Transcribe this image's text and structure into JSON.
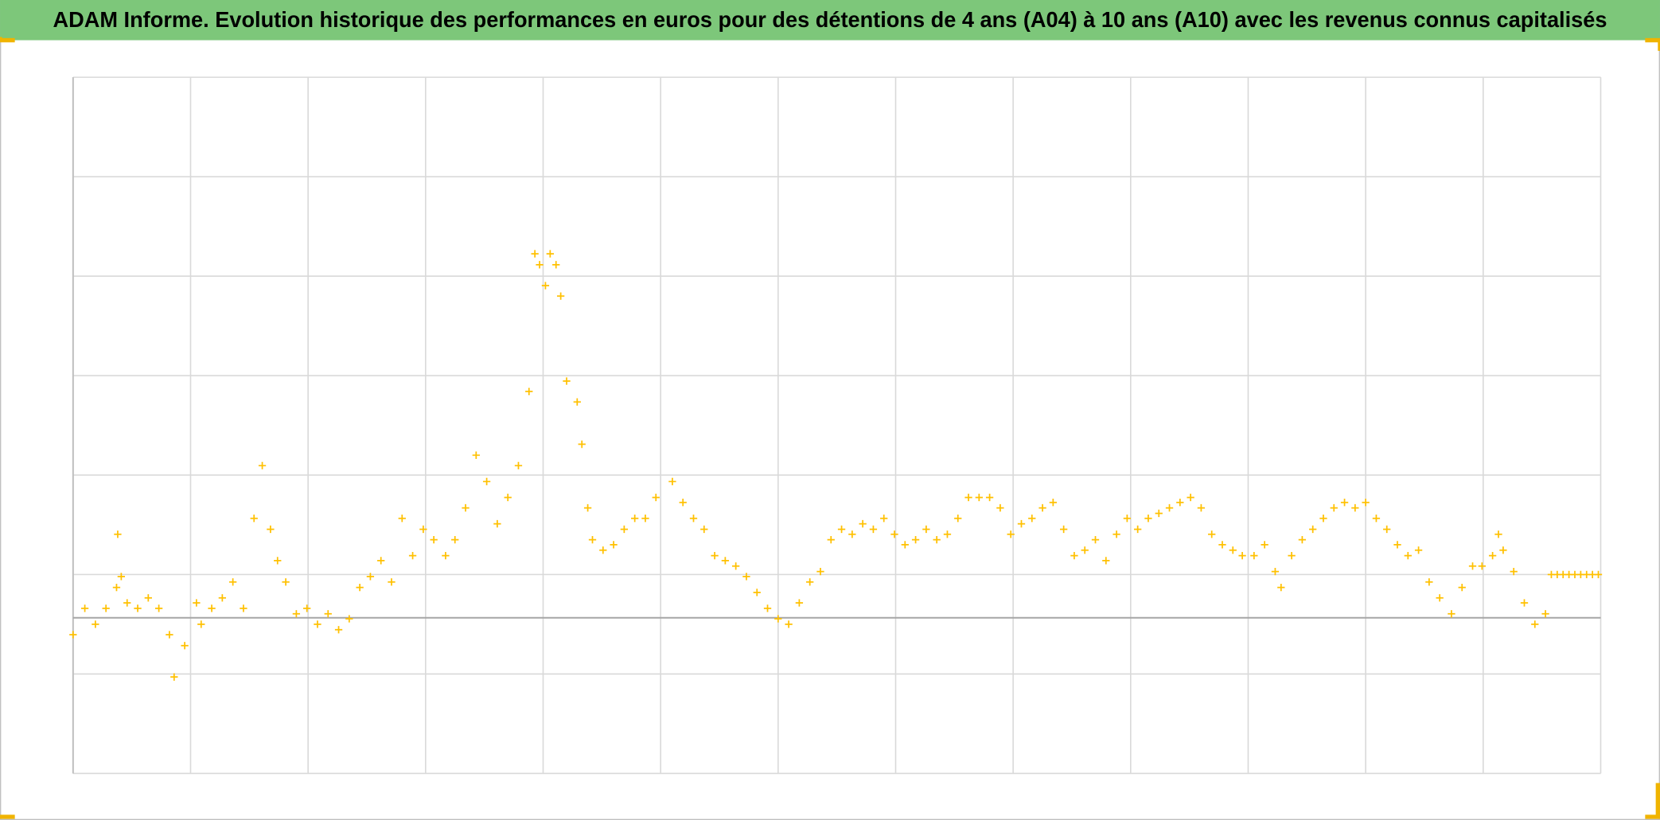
{
  "chart_data": {
    "type": "scatter",
    "title": "ADAM Informe. Evolution historique des performances en euros pour des détentions de 4 ans (A04) à 10 ans (A10) avec les revenus connus capitalisés",
    "color": "#FFC000",
    "marker": "plus",
    "grid": true,
    "xlim": [
      0,
      13
    ],
    "xticks": [
      0,
      1,
      2,
      3,
      4,
      5,
      6,
      7,
      8,
      9,
      10,
      11,
      12,
      13
    ],
    "ylim": [
      -40,
      100
    ],
    "yticks": [
      -40,
      -20,
      0,
      20,
      40,
      60,
      80,
      100
    ],
    "x_axis_at": -8.7,
    "x": [
      0,
      0.1,
      0.19,
      0.28,
      0.37,
      0.38,
      0.41,
      0.46,
      0.55,
      0.64,
      0.73,
      0.82,
      0.86,
      0.95,
      1.05,
      1.09,
      1.18,
      1.27,
      1.36,
      1.45,
      1.54,
      1.61,
      1.68,
      1.74,
      1.81,
      1.9,
      1.99,
      2.08,
      2.17,
      2.26,
      2.35,
      2.44,
      2.53,
      2.62,
      2.71,
      2.8,
      2.89,
      2.98,
      3.07,
      3.17,
      3.25,
      3.34,
      3.43,
      3.52,
      3.61,
      3.7,
      3.79,
      3.88,
      3.93,
      3.97,
      4.02,
      4.06,
      4.11,
      4.15,
      4.2,
      4.29,
      4.33,
      4.38,
      4.42,
      4.51,
      4.6,
      4.69,
      4.78,
      4.87,
      4.96,
      5.1,
      5.19,
      5.28,
      5.37,
      5.46,
      5.55,
      5.64,
      5.73,
      5.82,
      5.91,
      6.0,
      6.09,
      6.18,
      6.27,
      6.36,
      6.45,
      6.54,
      6.63,
      6.72,
      6.81,
      6.9,
      6.99,
      7.08,
      7.17,
      7.26,
      7.35,
      7.44,
      7.53,
      7.62,
      7.71,
      7.8,
      7.89,
      7.98,
      8.07,
      8.16,
      8.25,
      8.34,
      8.43,
      8.52,
      8.61,
      8.7,
      8.79,
      8.88,
      8.97,
      9.06,
      9.15,
      9.24,
      9.33,
      9.42,
      9.51,
      9.6,
      9.69,
      9.78,
      9.87,
      9.95,
      10.05,
      10.14,
      10.23,
      10.28,
      10.37,
      10.46,
      10.55,
      10.64,
      10.73,
      10.82,
      10.91,
      11.0,
      11.09,
      11.18,
      11.27,
      11.36,
      11.45,
      11.54,
      11.63,
      11.73,
      11.82,
      11.91,
      11.99,
      12.08,
      12.13,
      12.17,
      12.26,
      12.35,
      12.44,
      12.53,
      12.58,
      12.63,
      12.68,
      12.73,
      12.78,
      12.83,
      12.88,
      12.93,
      12.98
    ],
    "values": [
      -12.1,
      -6.8,
      -10.0,
      -6.8,
      -2.6,
      8.1,
      -0.4,
      -5.7,
      -6.8,
      -4.7,
      -6.8,
      -12.1,
      -20.6,
      -14.3,
      -5.7,
      -10.0,
      -6.8,
      -4.7,
      -1.5,
      -6.8,
      11.3,
      21.9,
      9.1,
      2.8,
      -1.5,
      -7.9,
      -6.8,
      -10.0,
      -7.9,
      -11.1,
      -8.9,
      -2.6,
      -0.4,
      2.8,
      -1.5,
      11.3,
      3.8,
      9.1,
      7.0,
      3.8,
      7.0,
      13.4,
      24.0,
      18.7,
      10.2,
      15.5,
      21.9,
      36.8,
      64.5,
      62.3,
      58.1,
      64.5,
      62.3,
      56.0,
      38.9,
      34.7,
      26.2,
      13.4,
      7.0,
      4.9,
      6.0,
      9.1,
      11.3,
      11.3,
      15.5,
      18.7,
      14.5,
      11.3,
      9.1,
      3.8,
      2.8,
      1.7,
      -0.4,
      -3.6,
      -6.8,
      -8.9,
      -10.0,
      -5.7,
      -1.5,
      0.6,
      7.0,
      9.1,
      8.1,
      10.2,
      9.1,
      11.3,
      8.1,
      6.0,
      7.0,
      9.1,
      7.0,
      8.1,
      11.3,
      15.5,
      15.5,
      15.5,
      13.4,
      8.1,
      10.2,
      11.3,
      13.4,
      14.5,
      9.1,
      3.8,
      4.9,
      7.0,
      2.8,
      8.1,
      11.3,
      9.1,
      11.3,
      12.3,
      13.4,
      14.5,
      15.5,
      13.4,
      8.1,
      6.0,
      4.9,
      3.8,
      3.8,
      6.0,
      0.6,
      -2.6,
      3.8,
      7.0,
      9.1,
      11.3,
      13.4,
      14.5,
      13.4,
      14.5,
      11.3,
      9.1,
      6.0,
      3.8,
      4.9,
      -1.5,
      -4.7,
      -7.9,
      -2.6,
      1.7,
      1.7,
      3.8,
      8.1,
      4.9,
      0.6,
      -5.7,
      -10.0,
      -7.9,
      0,
      0,
      0,
      0,
      0,
      0,
      0,
      0,
      0
    ]
  }
}
